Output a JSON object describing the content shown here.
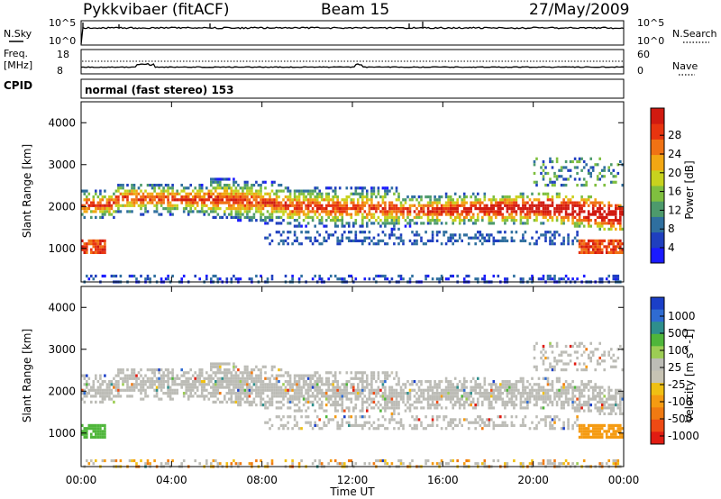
{
  "header": {
    "station": "Pykkvibaer (fitACF)",
    "beam": "Beam 15",
    "date": "27/May/2009"
  },
  "top_panels": {
    "nsky_label": "N.Sky",
    "nsearch_label": "N.Search",
    "noise_ticks_left": [
      "10^5",
      "10^0"
    ],
    "noise_ticks_right": [
      "10^5",
      "10^0"
    ],
    "freq_label_line1": "Freq.",
    "freq_label_line2": "[MHz]",
    "freq_ticks": [
      "18",
      "8"
    ],
    "nave_label": "Nave",
    "nave_ticks": [
      "60",
      "0"
    ],
    "cpid_label": "CPID",
    "cpid_text": "normal (fast stereo) 153"
  },
  "chart_data": [
    {
      "type": "heatmap",
      "panel": "power",
      "ylabel": "Slant Range [km]",
      "y_ticks": [
        "1000",
        "2000",
        "3000",
        "4000"
      ],
      "ylim": [
        200,
        4500
      ],
      "x_ticks": [
        "00:00",
        "04:00",
        "08:00",
        "12:00",
        "16:00",
        "20:00",
        "00:00"
      ],
      "xlim_hours": [
        0,
        24
      ],
      "colorbar": {
        "label": "Power [dB]",
        "ticks": [
          "4",
          "8",
          "12",
          "16",
          "20",
          "24",
          "28"
        ],
        "colors": [
          "#1a1aff",
          "#1f3fbf",
          "#2f6f9f",
          "#4d9a6c",
          "#7fbf3f",
          "#c8d21e",
          "#f2a713",
          "#f07214",
          "#e8340f",
          "#d11a10"
        ]
      },
      "features": [
        {
          "name": "main band",
          "start_range_km": 2200,
          "end_range_km": 1900,
          "note": "F-region backscatter 00:00-24:00"
        },
        {
          "name": "near range echoes",
          "range_km": 1000,
          "hours": [
            0,
            1
          ]
        },
        {
          "name": "near range echoes",
          "range_km": 1000,
          "hours": [
            22,
            24
          ]
        },
        {
          "name": "ground clutter",
          "range_km": 300
        }
      ]
    },
    {
      "type": "heatmap",
      "panel": "velocity",
      "ylabel": "Slant Range [km]",
      "y_ticks": [
        "1000",
        "2000",
        "3000",
        "4000"
      ],
      "ylim": [
        200,
        4500
      ],
      "x_ticks": [
        "00:00",
        "04:00",
        "08:00",
        "12:00",
        "16:00",
        "20:00",
        "00:00"
      ],
      "xlim_hours": [
        0,
        24
      ],
      "xlabel": "Time UT",
      "colorbar": {
        "label": "Velocity [m s^-1]",
        "ticks": [
          "1000",
          "500",
          "100",
          "25",
          "-25",
          "-100",
          "-500",
          "-1000"
        ],
        "colors": [
          "#1b3fc8",
          "#2f6bd1",
          "#2e8f8c",
          "#4fb63a",
          "#9ccd54",
          "#bcbcb6",
          "#c7c3b4",
          "#f0c013",
          "#f59b12",
          "#f07a12",
          "#ee4a14",
          "#e11c12"
        ]
      }
    }
  ]
}
